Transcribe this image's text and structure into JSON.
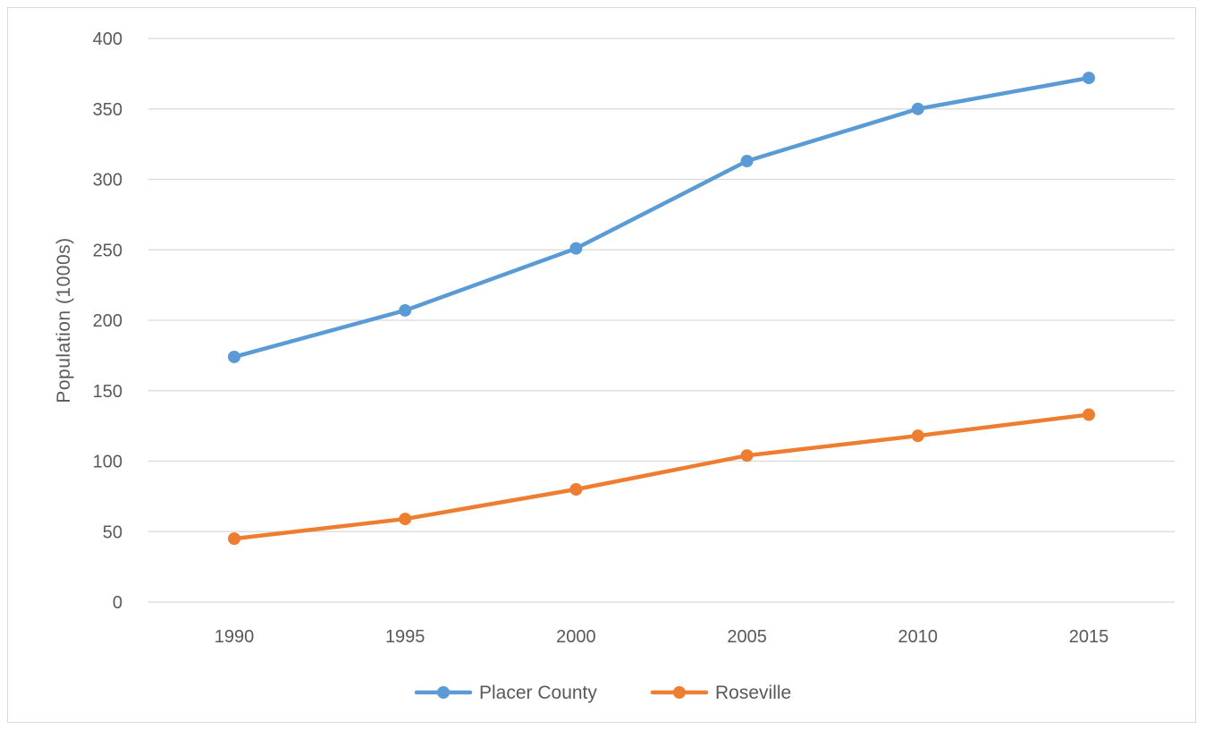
{
  "chart_data": {
    "type": "line",
    "title": "",
    "xlabel": "",
    "ylabel": "Population (1000s)",
    "ylim": [
      0,
      400
    ],
    "yticks": [
      0,
      50,
      100,
      150,
      200,
      250,
      300,
      350,
      400
    ],
    "x": [
      "1990",
      "1995",
      "2000",
      "2005",
      "2010",
      "2015"
    ],
    "grid": "horizontal",
    "legend_position": "bottom",
    "series": [
      {
        "name": "Placer County",
        "color": "#5b9bd5",
        "values": [
          174,
          207,
          251,
          313,
          350,
          372
        ]
      },
      {
        "name": "Roseville",
        "color": "#ed7d31",
        "values": [
          45,
          59,
          80,
          104,
          118,
          133
        ]
      }
    ]
  }
}
